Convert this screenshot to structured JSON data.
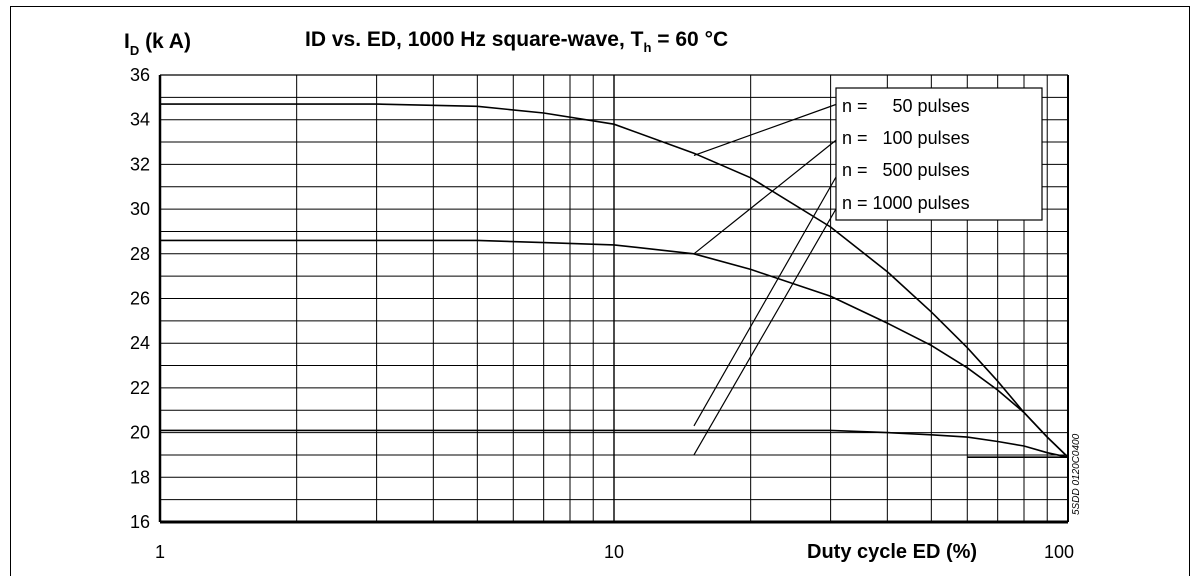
{
  "chart_data": {
    "type": "line",
    "title_prefix": "ID vs. ED, 1000 Hz square-wave, T",
    "title_sub": "h",
    "title_suffix": " = 60 °C",
    "ylabel_main": "I",
    "ylabel_sub": "D",
    "ylabel_unit": " (k A)",
    "xlabel": "Duty cycle ED (%)",
    "x_scale": "log",
    "xlim": [
      1,
      100
    ],
    "ylim": [
      16,
      36
    ],
    "grid": true,
    "x_ticks": [
      {
        "value": 1,
        "label": "1"
      },
      {
        "value": 10,
        "label": "10"
      },
      {
        "value": 100,
        "label": "100"
      }
    ],
    "y_ticks": [
      {
        "value": 16,
        "label": "16"
      },
      {
        "value": 18,
        "label": "18"
      },
      {
        "value": 20,
        "label": "20"
      },
      {
        "value": 22,
        "label": "22"
      },
      {
        "value": 24,
        "label": "24"
      },
      {
        "value": 26,
        "label": "26"
      },
      {
        "value": 28,
        "label": "28"
      },
      {
        "value": 30,
        "label": "30"
      },
      {
        "value": 32,
        "label": "32"
      },
      {
        "value": 34,
        "label": "34"
      },
      {
        "value": 36,
        "label": "36"
      }
    ],
    "legend_position": "top-right",
    "series": [
      {
        "name": "n =     50 pulses",
        "points": [
          [
            1,
            34.7
          ],
          [
            3,
            34.7
          ],
          [
            5,
            34.6
          ],
          [
            7,
            34.3
          ],
          [
            10,
            33.8
          ],
          [
            15,
            32.5
          ],
          [
            20,
            31.4
          ],
          [
            30,
            29.2
          ],
          [
            40,
            27.2
          ],
          [
            50,
            25.4
          ],
          [
            60,
            23.8
          ],
          [
            70,
            22.3
          ],
          [
            80,
            20.9
          ],
          [
            90,
            19.8
          ],
          [
            100,
            18.9
          ]
        ]
      },
      {
        "name": "n =   100 pulses",
        "points": [
          [
            1,
            28.6
          ],
          [
            3,
            28.6
          ],
          [
            5,
            28.6
          ],
          [
            7,
            28.5
          ],
          [
            10,
            28.4
          ],
          [
            15,
            28.0
          ],
          [
            20,
            27.3
          ],
          [
            30,
            26.1
          ],
          [
            40,
            24.9
          ],
          [
            50,
            23.9
          ],
          [
            60,
            22.9
          ],
          [
            70,
            21.9
          ],
          [
            80,
            20.9
          ],
          [
            90,
            19.8
          ],
          [
            100,
            18.9
          ]
        ]
      },
      {
        "name": "n =   500 pulses",
        "points": [
          [
            1,
            20.1
          ],
          [
            5,
            20.1
          ],
          [
            10,
            20.1
          ],
          [
            20,
            20.1
          ],
          [
            30,
            20.1
          ],
          [
            40,
            20.0
          ],
          [
            50,
            19.9
          ],
          [
            60,
            19.8
          ],
          [
            70,
            19.6
          ],
          [
            80,
            19.4
          ],
          [
            90,
            19.1
          ],
          [
            100,
            18.9
          ]
        ]
      },
      {
        "name": "n = 1000 pulses",
        "points": [
          [
            60,
            18.9
          ],
          [
            70,
            18.9
          ],
          [
            80,
            18.9
          ],
          [
            90,
            18.9
          ],
          [
            100,
            18.9
          ]
        ]
      }
    ],
    "annotations": [
      {
        "text": "5SDD 0120C0400"
      }
    ]
  }
}
